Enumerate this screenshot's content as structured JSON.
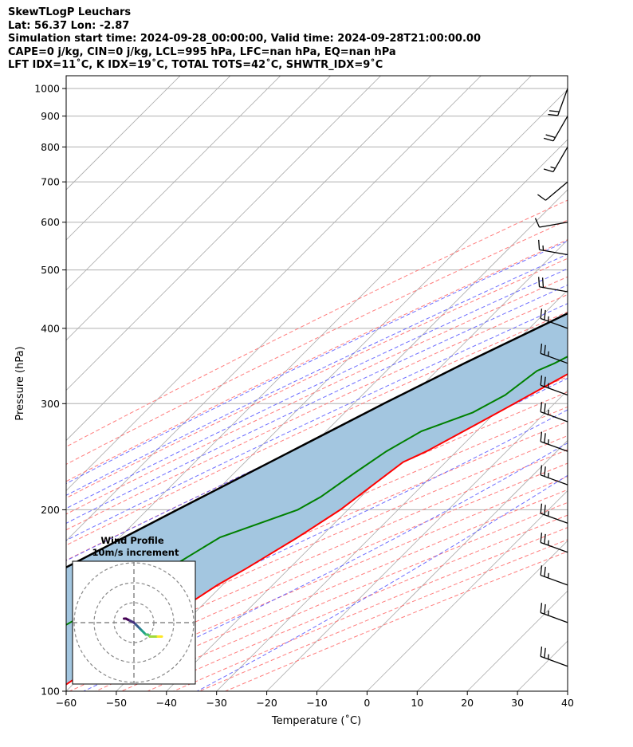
{
  "title_lines": [
    "SkewTLogP Leuchars",
    "Lat: 56.37   Lon: -2.87",
    "Simulation start time: 2024-09-28_00:00:00, Valid time: 2024-09-28T21:00:00.00",
    "CAPE=0 j/kg, CIN=0 j/kg, LCL=995 hPa, LFC=nan hPa, EQ=nan hPa",
    "LFT IDX=11˚C, K IDX=19˚C, TOTAL TOTS=42˚C, SHWTR_IDX=9˚C"
  ],
  "chart_data": {
    "type": "line",
    "subtype": "skew-T log-p",
    "xlabel": "Temperature (˚C)",
    "ylabel": "Pressure (hPa)",
    "xlim": [
      -60,
      40
    ],
    "ylim": [
      1050,
      100
    ],
    "y_scale": "log",
    "x_ticks": [
      "−60",
      "−50",
      "−40",
      "−30",
      "−20",
      "−10",
      "0",
      "10",
      "20",
      "30",
      "40"
    ],
    "y_ticks": [
      "100",
      "200",
      "300",
      "400",
      "500",
      "600",
      "700",
      "800",
      "900",
      "1000"
    ],
    "colors": {
      "temperature": "#ff0000",
      "dewpoint": "#008000",
      "parcel": "#000000",
      "fill": "#a3c6e0",
      "dry_adiabat": "#ff6666",
      "moist_adiabat": "#5555ff",
      "mixing_ratio": "#9b30d0",
      "isotherm": "#aaaaaa"
    },
    "series": [
      {
        "role": "temperature",
        "p": [
          1012,
          1005,
          995,
          980,
          950,
          900,
          850,
          800,
          750,
          700,
          650,
          600,
          550,
          500,
          450,
          400,
          350,
          300,
          280,
          250,
          240,
          200,
          180,
          160,
          150,
          130,
          110,
          100
        ],
        "t": [
          7.5,
          10.0,
          10.5,
          10.0,
          8.5,
          6.0,
          4.0,
          2.5,
          1.0,
          -0.5,
          -1.5,
          -2.5,
          -4.5,
          -7.0,
          -10.5,
          -15.5,
          -21.5,
          -28.0,
          -31.0,
          -36.0,
          -38.5,
          -41.5,
          -44.5,
          -48.5,
          -51.0,
          -55.0,
          -59.5,
          -62.0
        ]
      },
      {
        "role": "dewpoint",
        "p": [
          1012,
          1000,
          980,
          950,
          900,
          850,
          800,
          750,
          700,
          650,
          600,
          550,
          500,
          450,
          400,
          350,
          340,
          310,
          290,
          270,
          250,
          230,
          210,
          200,
          180,
          160,
          140,
          120,
          100
        ],
        "t": [
          6.0,
          5.0,
          4.5,
          4.0,
          3.5,
          2.5,
          1.0,
          -0.5,
          -2.0,
          -3.5,
          -5.5,
          -8.0,
          -12.5,
          -16.5,
          -21.5,
          -28.0,
          -30.0,
          -31.5,
          -34.5,
          -41.0,
          -44.0,
          -46.0,
          -48.0,
          -50.0,
          -60.0,
          -64.0,
          -70.0,
          -76.0,
          -80.0
        ]
      },
      {
        "role": "parcel",
        "p": [
          1012,
          995,
          950,
          900,
          850,
          800,
          750,
          700,
          650,
          600,
          550,
          500,
          450,
          400,
          350,
          300,
          250,
          200,
          150,
          120,
          100
        ],
        "t": [
          7.5,
          6.5,
          4.5,
          2.0,
          -0.5,
          -3.0,
          -6.0,
          -9.5,
          -13.0,
          -17.0,
          -21.5,
          -26.5,
          -32.0,
          -38.5,
          -46.0,
          -54.0,
          -63.0,
          -74.0,
          -88.0,
          -99.0,
          -107.0
        ]
      }
    ],
    "wind_barbs": {
      "p": [
        110,
        130,
        150,
        170,
        190,
        220,
        250,
        280,
        310,
        350,
        400,
        460,
        530,
        600,
        700,
        800,
        900,
        1000
      ],
      "speed_kt": [
        25,
        25,
        25,
        25,
        25,
        25,
        25,
        25,
        25,
        25,
        25,
        20,
        15,
        10,
        10,
        15,
        20,
        20
      ],
      "dir_deg": [
        290,
        290,
        290,
        290,
        290,
        290,
        290,
        290,
        290,
        290,
        290,
        280,
        280,
        260,
        230,
        210,
        210,
        200
      ]
    },
    "wind_profile": {
      "title": "Wind Profile",
      "subtitle": "10m/s increment",
      "u": [
        -5,
        -4,
        -2,
        0,
        1,
        2,
        3,
        4,
        5,
        6,
        7,
        8,
        10,
        12,
        14
      ],
      "v": [
        2,
        2,
        1,
        0,
        -1,
        -2,
        -3,
        -4,
        -5,
        -6,
        -6,
        -7,
        -7,
        -7,
        -7
      ]
    }
  }
}
